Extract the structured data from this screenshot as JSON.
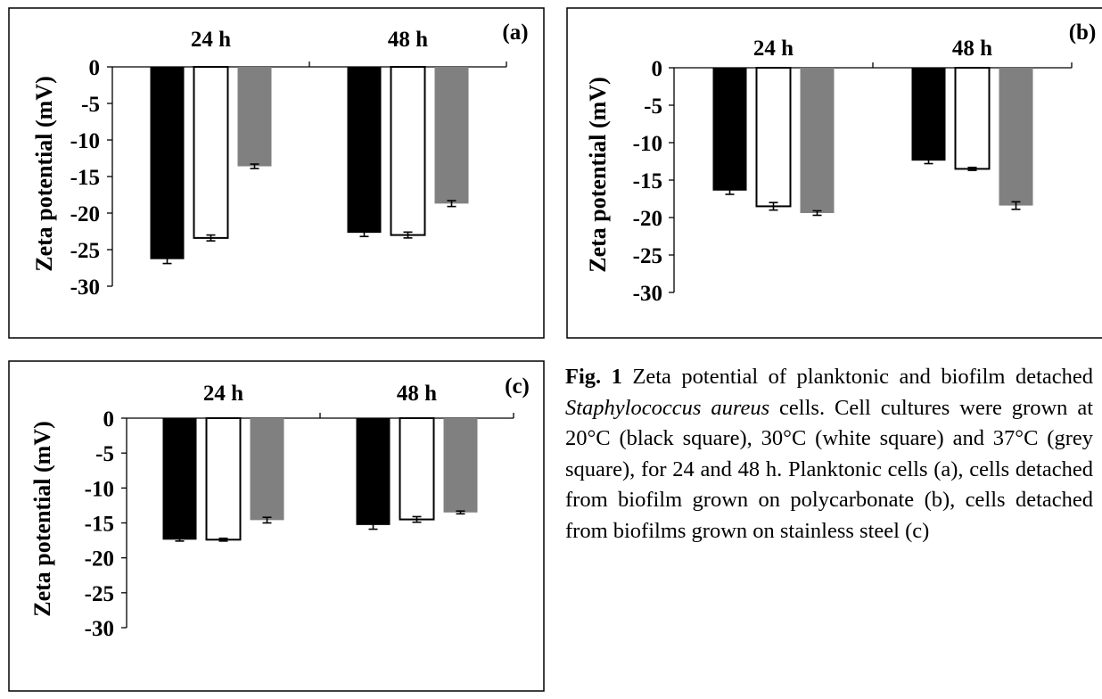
{
  "chart_data": [
    {
      "type": "bar",
      "panel_label": "(a)",
      "ylabel": "Zeta potential (mV)",
      "categories": [
        "24 h",
        "48 h"
      ],
      "yticks": [
        "0",
        "-5",
        "-10",
        "-15",
        "-20",
        "-25",
        "-30"
      ],
      "ylim": [
        -30,
        0
      ],
      "series": [
        {
          "values": [
            -26.3,
            -22.7
          ],
          "errors": [
            0.6,
            0.5
          ],
          "color": "#000000"
        },
        {
          "values": [
            -23.4,
            -23.0
          ],
          "errors": [
            0.4,
            0.4
          ],
          "color": "#ffffff"
        },
        {
          "values": [
            -13.6,
            -18.7
          ],
          "errors": [
            0.3,
            0.4
          ],
          "color": "#808080"
        }
      ]
    },
    {
      "type": "bar",
      "panel_label": "(b)",
      "ylabel": "Zeta potential (mV)",
      "categories": [
        "24 h",
        "48 h"
      ],
      "yticks": [
        "0",
        "-5",
        "-10",
        "-15",
        "-20",
        "-25",
        "-30"
      ],
      "ylim": [
        -30,
        0
      ],
      "series": [
        {
          "values": [
            -16.4,
            -12.4
          ],
          "errors": [
            0.5,
            0.4
          ],
          "color": "#000000"
        },
        {
          "values": [
            -18.5,
            -13.5
          ],
          "errors": [
            0.5,
            0.2
          ],
          "color": "#ffffff"
        },
        {
          "values": [
            -19.4,
            -18.4
          ],
          "errors": [
            0.3,
            0.5
          ],
          "color": "#808080"
        }
      ]
    },
    {
      "type": "bar",
      "panel_label": "(c)",
      "ylabel": "Zeta potential (mV)",
      "categories": [
        "24 h",
        "48 h"
      ],
      "yticks": [
        "0",
        "-5",
        "-10",
        "-15",
        "-20",
        "-25",
        "-30"
      ],
      "ylim": [
        -30,
        0
      ],
      "series": [
        {
          "values": [
            -17.4,
            -15.3
          ],
          "errors": [
            0.2,
            0.6
          ],
          "color": "#000000"
        },
        {
          "values": [
            -17.4,
            -14.5
          ],
          "errors": [
            0.2,
            0.4
          ],
          "color": "#ffffff"
        },
        {
          "values": [
            -14.6,
            -13.5
          ],
          "errors": [
            0.4,
            0.2
          ],
          "color": "#808080"
        }
      ]
    }
  ],
  "caption": {
    "fig_label": "Fig. 1",
    "text_1": " Zeta potential of planktonic and biofilm detached ",
    "species": "Staphylococcus aureus",
    "text_2": " cells. Cell cultures were grown at 20°C (black square), 30°C (white square) and 37°C (grey square), for 24 and 48 h. Planktonic cells (a), cells detached from biofilm grown on polycarbonate (b), cells detached from biofilms grown on stainless steel (c)"
  }
}
